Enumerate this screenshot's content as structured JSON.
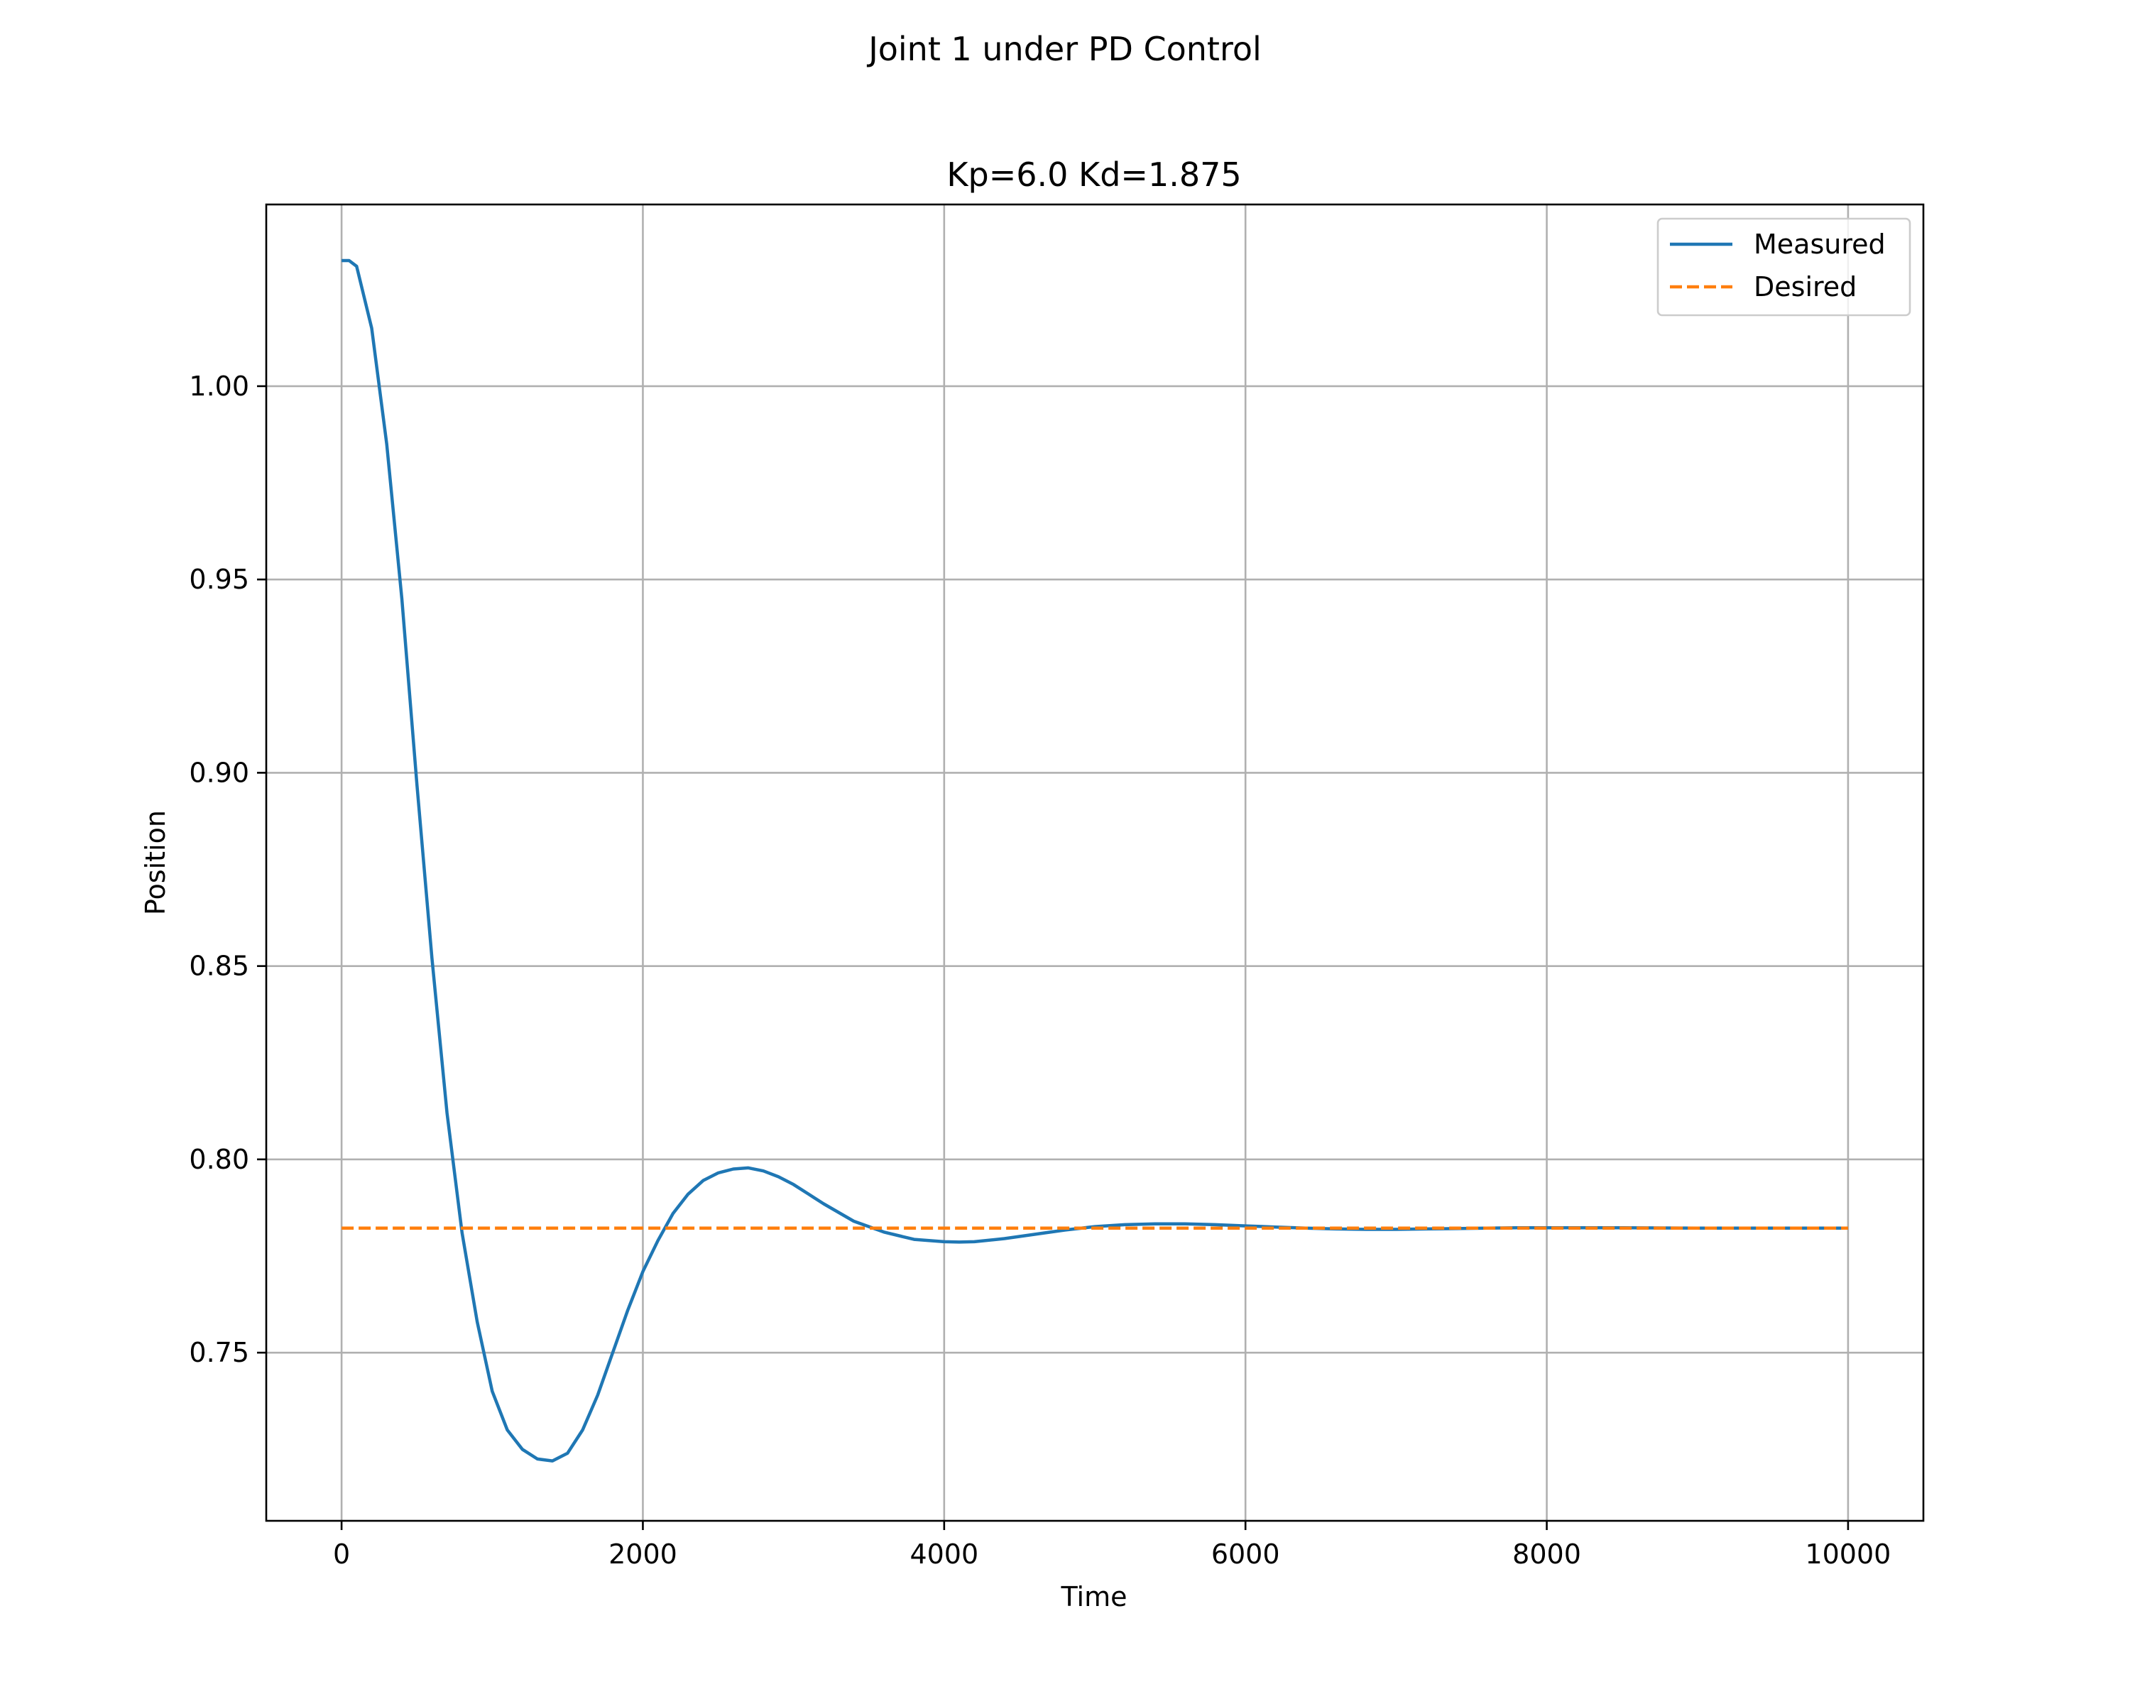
{
  "chart_data": {
    "type": "line",
    "suptitle": "Joint 1 under PD Control",
    "title": "Kp=6.0 Kd=1.875",
    "xlabel": "Time",
    "ylabel": "Position",
    "xlim": [
      -500,
      10500
    ],
    "ylim": [
      0.7065,
      1.047
    ],
    "xticks": [
      0,
      2000,
      4000,
      6000,
      8000,
      10000
    ],
    "xtick_labels": [
      "0",
      "2000",
      "4000",
      "6000",
      "8000",
      "10000"
    ],
    "yticks": [
      0.75,
      0.8,
      0.85,
      0.9,
      0.95,
      1.0
    ],
    "ytick_labels": [
      "0.75",
      "0.80",
      "0.85",
      "0.90",
      "0.95",
      "1.00"
    ],
    "grid": true,
    "legend": "upper right",
    "series": [
      {
        "name": "Measured",
        "color": "#1f77b4",
        "style": "solid",
        "x": [
          0,
          50,
          100,
          200,
          300,
          400,
          500,
          600,
          700,
          800,
          900,
          1000,
          1100,
          1200,
          1300,
          1400,
          1500,
          1600,
          1700,
          1800,
          1900,
          2000,
          2100,
          2200,
          2300,
          2400,
          2500,
          2600,
          2700,
          2800,
          2900,
          3000,
          3100,
          3200,
          3400,
          3600,
          3800,
          4000,
          4100,
          4200,
          4400,
          4600,
          4800,
          5000,
          5200,
          5400,
          5600,
          5800,
          6000,
          6200,
          6400,
          6600,
          6800,
          7000,
          7200,
          7400,
          7600,
          7800,
          8000,
          8500,
          9000,
          9500,
          10000
        ],
        "y": [
          1.0325,
          1.0325,
          1.031,
          1.015,
          0.985,
          0.945,
          0.897,
          0.852,
          0.812,
          0.781,
          0.758,
          0.74,
          0.73,
          0.725,
          0.7225,
          0.722,
          0.724,
          0.73,
          0.739,
          0.75,
          0.761,
          0.771,
          0.779,
          0.786,
          0.791,
          0.7945,
          0.7965,
          0.7975,
          0.7978,
          0.797,
          0.7955,
          0.7935,
          0.791,
          0.7885,
          0.784,
          0.7812,
          0.7793,
          0.7787,
          0.7786,
          0.7787,
          0.7795,
          0.7806,
          0.7817,
          0.7826,
          0.7831,
          0.7833,
          0.7833,
          0.7831,
          0.7828,
          0.7825,
          0.7822,
          0.782,
          0.7819,
          0.7819,
          0.782,
          0.7821,
          0.7822,
          0.7823,
          0.7823,
          0.7823,
          0.7822,
          0.7822,
          0.7822
        ]
      },
      {
        "name": "Desired",
        "color": "#ff7f0e",
        "style": "dashed",
        "x": [
          0,
          10000
        ],
        "y": [
          0.7822,
          0.7822
        ]
      }
    ]
  }
}
